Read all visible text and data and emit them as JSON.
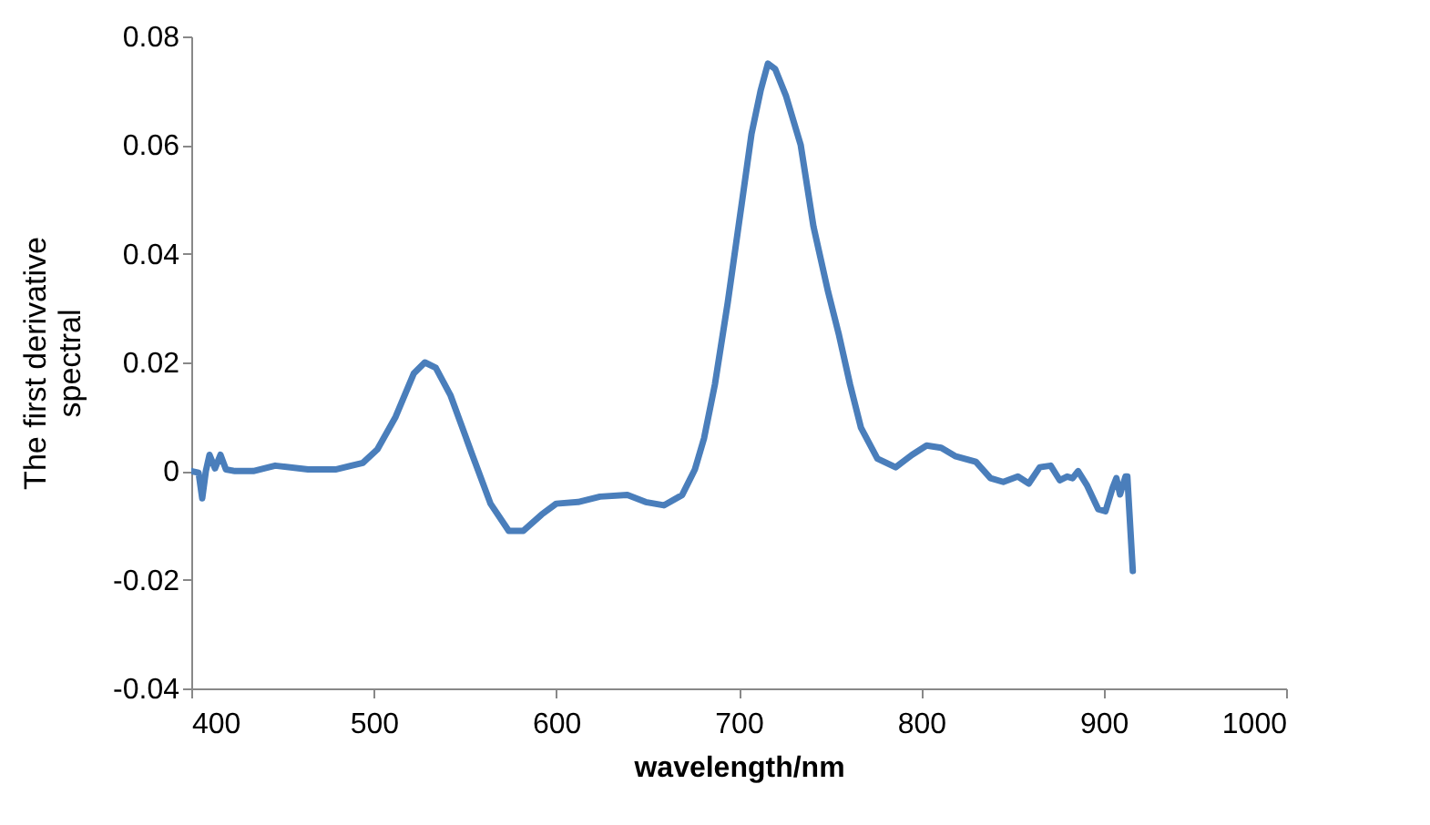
{
  "chart_data": {
    "type": "line",
    "xlabel": "wavelength/nm",
    "ylabel": "The first derivative spectral",
    "xlim": [
      400,
      1000
    ],
    "xticks": [
      400,
      500,
      600,
      700,
      800,
      900,
      1000
    ],
    "ylim": [
      -0.04,
      0.08
    ],
    "yticks": [
      -0.04,
      -0.02,
      0,
      0.02,
      0.04,
      0.06,
      0.08
    ],
    "grid": false,
    "marker": "none",
    "line_style": "solid",
    "series": [
      {
        "color": "#4a7ebb",
        "x": [
          400,
          404,
          406,
          408,
          410,
          413,
          416,
          419,
          424,
          434,
          446,
          464,
          479,
          494,
          502,
          512,
          522,
          528,
          534,
          542,
          554,
          564,
          574,
          582,
          592,
          600,
          612,
          624,
          639,
          649,
          659,
          669,
          676,
          681,
          687,
          694,
          702,
          707,
          712,
          716,
          720,
          726,
          734,
          741,
          749,
          755,
          761,
          767,
          776,
          786,
          795,
          803,
          811,
          819,
          830,
          838,
          845,
          853,
          859,
          865,
          871,
          876,
          880,
          883,
          886,
          891,
          897,
          901,
          905,
          907,
          909,
          912,
          913,
          916
        ],
        "values": [
          0,
          -0.0003,
          -0.005,
          0,
          0.003,
          0.0005,
          0.003,
          0.0003,
          0,
          0,
          0.001,
          0.0003,
          0.0003,
          0.0015,
          0.004,
          0.01,
          0.018,
          0.02,
          0.019,
          0.014,
          0.003,
          -0.006,
          -0.011,
          -0.011,
          -0.008,
          -0.006,
          -0.0057,
          -0.0047,
          -0.0044,
          -0.0057,
          -0.0063,
          -0.0044,
          0.0003,
          0.006,
          0.016,
          0.031,
          0.05,
          0.062,
          0.07,
          0.075,
          0.074,
          0.069,
          0.06,
          0.045,
          0.033,
          0.025,
          0.016,
          0.008,
          0.0023,
          0.0007,
          0.003,
          0.0047,
          0.0043,
          0.0027,
          0.0017,
          -0.0013,
          -0.002,
          -0.001,
          -0.0023,
          0.0007,
          0.001,
          -0.0017,
          -0.001,
          -0.0013,
          0,
          -0.0027,
          -0.007,
          -0.0074,
          -0.003,
          -0.0013,
          -0.0043,
          -0.001,
          -0.001,
          -0.0184
        ]
      }
    ]
  }
}
